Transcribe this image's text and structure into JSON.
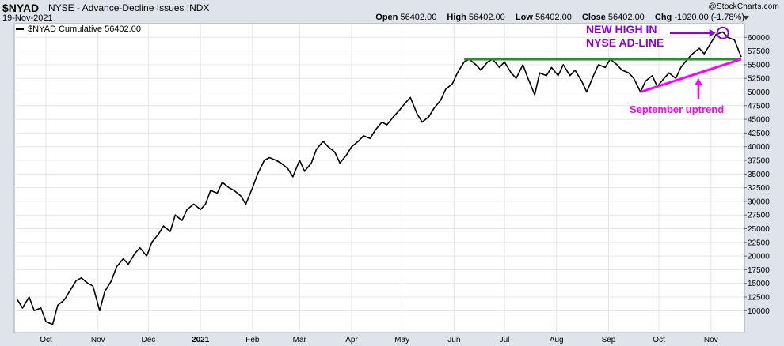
{
  "header": {
    "symbol": "$NYAD",
    "title": "NYSE - Advance-Decline Issues INDX",
    "date": "19-Nov-2021",
    "brand": "@StockCharts.com",
    "open_label": "Open",
    "open_value": "56402.00",
    "high_label": "High",
    "high_value": "56402.00",
    "low_label": "Low",
    "low_value": "56402.00",
    "close_label": "Close",
    "close_value": "56402.00",
    "chg_label": "Chg",
    "chg_value": "-1020.00 (-1.78%)"
  },
  "legend": {
    "series_name": "$NYAD Cumulative",
    "series_value": "56402.00"
  },
  "annotations": {
    "new_high_line1": "NEW HIGH IN",
    "new_high_line2": "NYSE AD-LINE",
    "uptrend_label": "September uptrend"
  },
  "colors": {
    "background": "#dfe4ea",
    "plot": "#ffffff",
    "line": "#000000",
    "grid": "#e6e6e6",
    "resistance": "#2e8b2e",
    "uptrend": "#ff00ff",
    "new_high": "#9400d3"
  },
  "chart_data": {
    "type": "line",
    "title": "$NYAD NYSE - Advance-Decline Issues INDX",
    "xlabel": "",
    "ylabel": "",
    "x_range": [
      "2020-09-14",
      "2021-11-19"
    ],
    "ylim": [
      6000,
      62500
    ],
    "y_axis_side": "right",
    "grid": true,
    "legend": "top-left",
    "yticks": [
      10000,
      12500,
      15000,
      17500,
      20000,
      22500,
      25000,
      27500,
      30000,
      32500,
      35000,
      37500,
      40000,
      42500,
      45000,
      47500,
      50000,
      52500,
      55000,
      57500,
      60000
    ],
    "xticks": [
      {
        "date": "2020-10-01",
        "label": "Oct"
      },
      {
        "date": "2020-11-01",
        "label": "Nov"
      },
      {
        "date": "2020-12-01",
        "label": "Dec"
      },
      {
        "date": "2021-01-01",
        "label": "2021"
      },
      {
        "date": "2021-02-01",
        "label": "Feb"
      },
      {
        "date": "2021-03-01",
        "label": "Mar"
      },
      {
        "date": "2021-04-01",
        "label": "Apr"
      },
      {
        "date": "2021-05-01",
        "label": "May"
      },
      {
        "date": "2021-06-01",
        "label": "Jun"
      },
      {
        "date": "2021-07-01",
        "label": "Jul"
      },
      {
        "date": "2021-08-01",
        "label": "Aug"
      },
      {
        "date": "2021-09-01",
        "label": "Sep"
      },
      {
        "date": "2021-10-01",
        "label": "Oct"
      },
      {
        "date": "2021-11-01",
        "label": "Nov"
      }
    ],
    "series": [
      {
        "name": "$NYAD Cumulative",
        "points": [
          [
            "2020-09-14",
            12000
          ],
          [
            "2020-09-17",
            10500
          ],
          [
            "2020-09-21",
            12500
          ],
          [
            "2020-09-24",
            10000
          ],
          [
            "2020-09-28",
            10500
          ],
          [
            "2020-10-01",
            8000
          ],
          [
            "2020-10-05",
            7500
          ],
          [
            "2020-10-08",
            11000
          ],
          [
            "2020-10-12",
            12000
          ],
          [
            "2020-10-15",
            13500
          ],
          [
            "2020-10-19",
            15500
          ],
          [
            "2020-10-22",
            16000
          ],
          [
            "2020-10-26",
            15000
          ],
          [
            "2020-10-29",
            14500
          ],
          [
            "2020-11-02",
            10000
          ],
          [
            "2020-11-05",
            13500
          ],
          [
            "2020-11-09",
            15500
          ],
          [
            "2020-11-12",
            18000
          ],
          [
            "2020-11-16",
            19500
          ],
          [
            "2020-11-19",
            18500
          ],
          [
            "2020-11-23",
            20500
          ],
          [
            "2020-11-26",
            21500
          ],
          [
            "2020-11-30",
            20000
          ],
          [
            "2020-12-03",
            22500
          ],
          [
            "2020-12-07",
            24000
          ],
          [
            "2020-12-10",
            25500
          ],
          [
            "2020-12-14",
            24500
          ],
          [
            "2020-12-17",
            27500
          ],
          [
            "2020-12-21",
            26500
          ],
          [
            "2020-12-24",
            28500
          ],
          [
            "2020-12-28",
            29500
          ],
          [
            "2021-01-01",
            28500
          ],
          [
            "2021-01-04",
            29500
          ],
          [
            "2021-01-07",
            32000
          ],
          [
            "2021-01-11",
            31500
          ],
          [
            "2021-01-14",
            33500
          ],
          [
            "2021-01-18",
            32500
          ],
          [
            "2021-01-21",
            32000
          ],
          [
            "2021-01-25",
            31000
          ],
          [
            "2021-01-28",
            29500
          ],
          [
            "2021-02-01",
            32500
          ],
          [
            "2021-02-04",
            35000
          ],
          [
            "2021-02-08",
            37500
          ],
          [
            "2021-02-11",
            38000
          ],
          [
            "2021-02-15",
            37500
          ],
          [
            "2021-02-18",
            37000
          ],
          [
            "2021-02-22",
            36000
          ],
          [
            "2021-02-25",
            34500
          ],
          [
            "2021-03-01",
            37500
          ],
          [
            "2021-03-04",
            35500
          ],
          [
            "2021-03-08",
            37000
          ],
          [
            "2021-03-11",
            39500
          ],
          [
            "2021-03-15",
            41000
          ],
          [
            "2021-03-18",
            40000
          ],
          [
            "2021-03-22",
            39000
          ],
          [
            "2021-03-25",
            37000
          ],
          [
            "2021-03-29",
            38500
          ],
          [
            "2021-04-01",
            40000
          ],
          [
            "2021-04-05",
            41000
          ],
          [
            "2021-04-08",
            42000
          ],
          [
            "2021-04-12",
            41500
          ],
          [
            "2021-04-15",
            43000
          ],
          [
            "2021-04-19",
            44500
          ],
          [
            "2021-04-22",
            44000
          ],
          [
            "2021-04-26",
            45500
          ],
          [
            "2021-04-29",
            46500
          ],
          [
            "2021-05-03",
            48000
          ],
          [
            "2021-05-06",
            49000
          ],
          [
            "2021-05-10",
            46000
          ],
          [
            "2021-05-13",
            44500
          ],
          [
            "2021-05-17",
            45500
          ],
          [
            "2021-05-20",
            47000
          ],
          [
            "2021-05-24",
            48500
          ],
          [
            "2021-05-27",
            50500
          ],
          [
            "2021-05-31",
            51500
          ],
          [
            "2021-06-03",
            53500
          ],
          [
            "2021-06-07",
            55500
          ],
          [
            "2021-06-10",
            56000
          ],
          [
            "2021-06-14",
            55000
          ],
          [
            "2021-06-17",
            54000
          ],
          [
            "2021-06-21",
            55500
          ],
          [
            "2021-06-24",
            56000
          ],
          [
            "2021-06-28",
            54500
          ],
          [
            "2021-07-01",
            55500
          ],
          [
            "2021-07-05",
            53500
          ],
          [
            "2021-07-08",
            52500
          ],
          [
            "2021-07-12",
            55000
          ],
          [
            "2021-07-15",
            52500
          ],
          [
            "2021-07-19",
            49500
          ],
          [
            "2021-07-22",
            53500
          ],
          [
            "2021-07-26",
            53000
          ],
          [
            "2021-07-29",
            54500
          ],
          [
            "2021-08-02",
            53000
          ],
          [
            "2021-08-05",
            55000
          ],
          [
            "2021-08-09",
            53000
          ],
          [
            "2021-08-12",
            54000
          ],
          [
            "2021-08-16",
            52000
          ],
          [
            "2021-08-19",
            50000
          ],
          [
            "2021-08-23",
            53000
          ],
          [
            "2021-08-26",
            55000
          ],
          [
            "2021-08-30",
            54500
          ],
          [
            "2021-09-02",
            56000
          ],
          [
            "2021-09-06",
            55000
          ],
          [
            "2021-09-09",
            54000
          ],
          [
            "2021-09-13",
            53500
          ],
          [
            "2021-09-16",
            52500
          ],
          [
            "2021-09-20",
            50000
          ],
          [
            "2021-09-23",
            52000
          ],
          [
            "2021-09-27",
            53000
          ],
          [
            "2021-09-30",
            51000
          ],
          [
            "2021-10-04",
            52500
          ],
          [
            "2021-10-07",
            53500
          ],
          [
            "2021-10-11",
            52500
          ],
          [
            "2021-10-14",
            54500
          ],
          [
            "2021-10-18",
            56000
          ],
          [
            "2021-10-21",
            57000
          ],
          [
            "2021-10-25",
            58000
          ],
          [
            "2021-10-28",
            57000
          ],
          [
            "2021-11-01",
            59000
          ],
          [
            "2021-11-04",
            60500
          ],
          [
            "2021-11-08",
            61000
          ],
          [
            "2021-11-11",
            60000
          ],
          [
            "2021-11-15",
            59500
          ],
          [
            "2021-11-19",
            56402
          ]
        ]
      }
    ],
    "overlays": [
      {
        "kind": "horizontal-line",
        "label": "resistance",
        "from": "2021-06-07",
        "to": "2021-11-19",
        "y": 56000
      },
      {
        "kind": "trendline",
        "label": "September uptrend",
        "from": [
          "2021-09-20",
          50000
        ],
        "to": [
          "2021-11-19",
          56000
        ]
      },
      {
        "kind": "circle",
        "label": "new high",
        "at": [
          "2021-11-08",
          60800
        ]
      }
    ]
  }
}
